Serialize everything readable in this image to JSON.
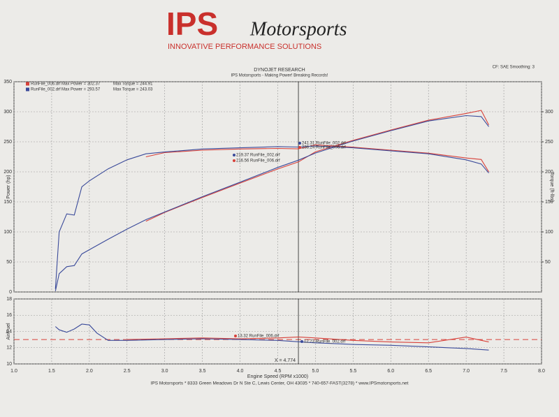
{
  "header": {
    "brand": "IPS",
    "brand_script": "Motorsports",
    "tagline": "INNOVATIVE PERFORMANCE SOLUTIONS",
    "title": "DYNOJET RESEARCH",
    "subtitle": "IPS Motorsports - Making Power! Breaking Records!",
    "settings": "CF: SAE  Smoothing: 3"
  },
  "legend": [
    {
      "name": "RunFile_006.drf",
      "color": "#d8413a",
      "power": "Max Power = 302.37",
      "torque": "Max Torque = 244.91"
    },
    {
      "name": "RunFile_002.drf",
      "color": "#3a4a9a",
      "power": "Max Power = 293.57",
      "torque": "Max Torque = 243.03"
    }
  ],
  "chart_data": [
    {
      "type": "line",
      "ylabel": "Power (hp)",
      "y2label": "Torque (ft-lbs)",
      "xlim": [
        1.0,
        8.0
      ],
      "xticks": [
        1,
        1.5,
        2,
        2.5,
        3,
        3.5,
        4,
        4.5,
        5,
        5.5,
        6,
        6.5,
        7,
        7.5,
        8
      ],
      "ylim": [
        0,
        350
      ],
      "yticks": [
        0,
        50,
        100,
        150,
        200,
        250,
        300,
        350
      ],
      "y2lim": [
        0,
        350
      ],
      "y2ticks": [
        50,
        100,
        150,
        200,
        250,
        300
      ],
      "grid": true,
      "cursor_x": 4.774,
      "x": [
        1.55,
        1.6,
        1.7,
        1.8,
        1.9,
        2.0,
        2.25,
        2.5,
        2.75,
        3.0,
        3.5,
        4.0,
        4.5,
        4.774,
        5.0,
        5.5,
        6.0,
        6.5,
        7.0,
        7.2,
        7.3
      ],
      "series": [
        {
          "color": "#d8413a",
          "values": [
            null,
            null,
            null,
            null,
            null,
            null,
            null,
            null,
            117.8,
            132.5,
            157.3,
            181.3,
            204.8,
            216.56,
            233.2,
            252.4,
            269.6,
            285.9,
            297.2,
            302.37,
            278
          ]
        },
        {
          "color": "#3a4a9a",
          "values": [
            1.5,
            30.5,
            42.1,
            43.9,
            63.3,
            70.4,
            87.8,
            104.7,
            120.4,
            133.1,
            158.6,
            182.8,
            207.3,
            219.37,
            231.3,
            251.3,
            268.5,
            284.6,
            293.57,
            292.0,
            275.2
          ]
        },
        {
          "color": "#d8413a",
          "axis": "y2",
          "values": [
            null,
            null,
            null,
            null,
            null,
            null,
            null,
            null,
            225,
            232,
            236,
            238,
            239,
            238.24,
            244.91,
            241,
            236,
            231,
            223,
            220.6,
            200
          ]
        },
        {
          "color": "#3a4a9a",
          "axis": "y2",
          "values": [
            5,
            100,
            130,
            128,
            175,
            185,
            205,
            220,
            230,
            233,
            238,
            240,
            242,
            241.31,
            243.03,
            240,
            235,
            230,
            220,
            213,
            198
          ]
        }
      ],
      "cursor_labels": [
        "241.31 RunFile_002.drf",
        "238.24 RunFile_006.drf",
        "219.37 RunFile_002.drf",
        "216.56 RunFile_006.drf"
      ]
    },
    {
      "type": "line",
      "ylabel": "Air/Fuel",
      "xlabel": "Engine Speed (RPM x1000)",
      "xlim": [
        1.0,
        8.0
      ],
      "xticks": [
        {
          "value": 1,
          "label": "1.0"
        },
        {
          "value": 1.5,
          "label": "1.5"
        },
        {
          "value": 2,
          "label": "2.0"
        },
        {
          "value": 2.5,
          "label": "2.5"
        },
        {
          "value": 3,
          "label": "3.0"
        },
        {
          "value": 3.5,
          "label": "3.5"
        },
        {
          "value": 4,
          "label": "4.0"
        },
        {
          "value": 4.5,
          "label": "4.5"
        },
        {
          "value": 5,
          "label": "5.0"
        },
        {
          "value": 5.5,
          "label": "5.5"
        },
        {
          "value": 6,
          "label": "6.0"
        },
        {
          "value": 6.5,
          "label": "6.5"
        },
        {
          "value": 7,
          "label": "7.0"
        },
        {
          "value": 7.5,
          "label": "7.5"
        },
        {
          "value": 8,
          "label": "8.0"
        }
      ],
      "ylim": [
        10,
        18
      ],
      "yticks": [
        10,
        12,
        14,
        16,
        18
      ],
      "grid": true,
      "hline": 13,
      "cursor": {
        "value": 4.774,
        "label": "X = 4.774"
      },
      "x": [
        1.55,
        1.6,
        1.7,
        1.8,
        1.9,
        2.0,
        2.1,
        2.25,
        2.5,
        3.0,
        3.5,
        4.0,
        4.5,
        4.774,
        5.0,
        5.5,
        6.0,
        6.5,
        7.0,
        7.3
      ],
      "series": [
        {
          "color": "#d8413a",
          "values": [
            null,
            null,
            null,
            null,
            null,
            null,
            null,
            null,
            13.0,
            13.1,
            13.2,
            13.1,
            13.2,
            13.32,
            13.2,
            12.9,
            12.7,
            12.6,
            13.3,
            12.7
          ]
        },
        {
          "color": "#3a4a9a",
          "values": [
            14.6,
            14.2,
            13.9,
            14.3,
            14.9,
            14.8,
            13.8,
            12.9,
            12.9,
            13.0,
            13.1,
            13.0,
            12.9,
            12.73,
            12.6,
            12.4,
            12.3,
            12.1,
            11.9,
            11.7
          ]
        }
      ],
      "cursor_labels": [
        "13.32 RunFile_006.drf",
        "12.73 RunFile_002.drf"
      ]
    }
  ],
  "footer": "IPS Motorsports * 8333 Green Meadows Dr N Ste C, Lewis Center, OH 43035 * 740-657-FAST(3278) * www.IPSmotorsports.net"
}
